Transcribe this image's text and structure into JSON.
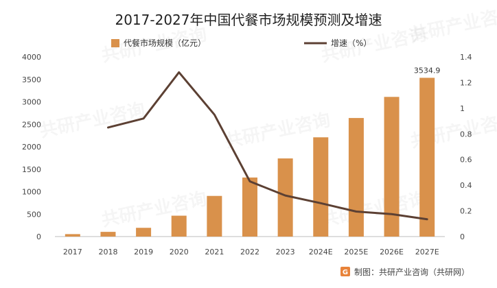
{
  "chart_data": {
    "type": "bar",
    "title": "2017-2027年中国代餐市场规模预测及增速",
    "categories": [
      "2017",
      "2018",
      "2019",
      "2020",
      "2021",
      "2022",
      "2023",
      "2024E",
      "2025E",
      "2026E",
      "2027E"
    ],
    "series": [
      {
        "name": "代餐市场规模（亿元）",
        "type": "bar",
        "axis": "left",
        "color": "#D9914B",
        "values": [
          55,
          105,
          195,
          465,
          905,
          1315,
          1740,
          2210,
          2640,
          3110,
          3534.9
        ]
      },
      {
        "name": "增速（%）",
        "type": "line",
        "axis": "right",
        "color": "#5C4033",
        "values": [
          null,
          0.85,
          0.92,
          1.28,
          0.95,
          0.43,
          0.32,
          0.26,
          0.195,
          0.175,
          0.135
        ]
      }
    ],
    "y_left": {
      "ylim": [
        0,
        4000
      ],
      "ticks": [
        0,
        500,
        1000,
        1500,
        2000,
        2500,
        3000,
        3500,
        4000
      ]
    },
    "y_right": {
      "ylim": [
        0,
        1.4
      ],
      "ticks": [
        "0",
        "0.2",
        "0.4",
        "0.6",
        "0.8",
        "1",
        "1.2",
        "1.4"
      ]
    },
    "data_labels": [
      {
        "category": "2027E",
        "text": "3534.9"
      }
    ],
    "legend": {
      "position": "top"
    },
    "grid": false
  },
  "source": {
    "text": "制图：共研产业咨询（共研网）",
    "logo_icon": "g-logo-icon",
    "logo_color": "#E8833A"
  },
  "watermark": {
    "text": "共研产业咨询"
  }
}
